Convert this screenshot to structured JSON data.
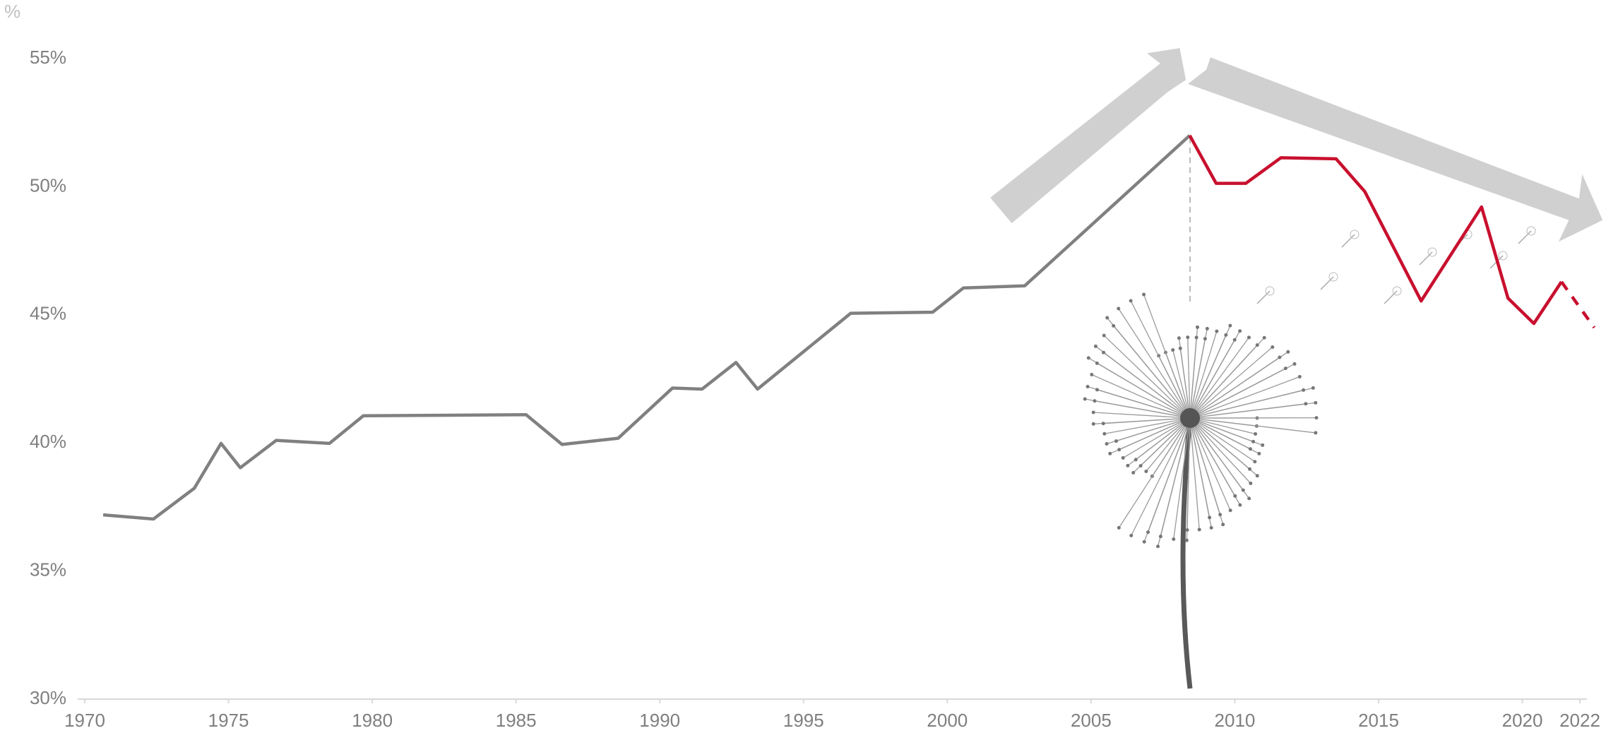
{
  "chart_data": {
    "type": "line",
    "unit_label": "%",
    "series": [
      {
        "color": "#808080",
        "dashed": false,
        "x": [
          1970.64,
          1972.39,
          1973.81,
          1974.74,
          1975.41,
          1976.66,
          1978.51,
          1979.69,
          1985.35,
          1986.6,
          1988.55,
          1990.44,
          1991.47,
          1992.65,
          1993.4,
          1996.64,
          1999.49,
          2000.56,
          2002.69,
          2008.43
        ],
        "values": [
          37.19,
          37.03,
          38.23,
          39.98,
          39.03,
          40.1,
          39.98,
          41.06,
          41.1,
          39.94,
          40.18,
          42.14,
          42.1,
          43.14,
          42.1,
          45.06,
          45.1,
          46.05,
          46.13,
          52.0
        ]
      },
      {
        "color": "#c8102e",
        "dashed": false,
        "x": [
          2008.43,
          2009.35,
          2010.38,
          2011.6,
          2013.52,
          2014.52,
          2016.48,
          2018.58,
          2019.5,
          2020.4,
          2021.36
        ],
        "values": [
          52.0,
          50.13,
          50.13,
          51.13,
          51.09,
          49.81,
          45.54,
          49.21,
          45.65,
          44.66,
          46.29
        ]
      },
      {
        "color": "#c8102e",
        "dashed": true,
        "x": [
          2021.36,
          2022.5
        ],
        "values": [
          46.29,
          44.5
        ]
      }
    ],
    "xlim": [
      1970,
      2022
    ],
    "xticks": [
      1970,
      1975,
      1980,
      1985,
      1990,
      1995,
      2000,
      2005,
      2010,
      2015,
      2020,
      2022
    ],
    "ylim": [
      30,
      55
    ],
    "yticks": [
      {
        "value": 30,
        "label": "30%"
      },
      {
        "value": 35,
        "label": "35%"
      },
      {
        "value": 40,
        "label": "40%"
      },
      {
        "value": 45,
        "label": "45%"
      },
      {
        "value": 50,
        "label": "50%"
      },
      {
        "value": 55,
        "label": "55%"
      }
    ],
    "grid": false
  }
}
